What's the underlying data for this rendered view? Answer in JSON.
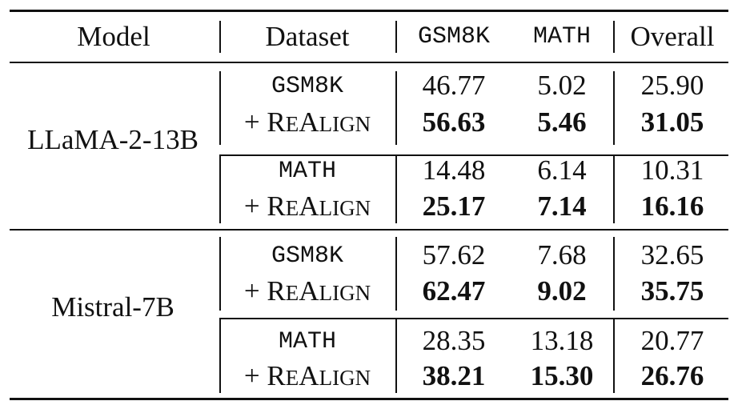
{
  "header": {
    "model": "Model",
    "dataset": "Dataset",
    "gsm8k": "GSM8K",
    "math": "MATH",
    "overall": "Overall"
  },
  "realign_prefix": "+ ",
  "realign_label": "ReAlign",
  "groups": [
    {
      "model": "LLaMA-2-13B",
      "blocks": [
        {
          "dataset": "GSM8K",
          "base": {
            "gsm8k": "46.77",
            "math": "5.02",
            "overall": "25.90"
          },
          "realign": {
            "gsm8k": "56.63",
            "math": "5.46",
            "overall": "31.05"
          }
        },
        {
          "dataset": "MATH",
          "base": {
            "gsm8k": "14.48",
            "math": "6.14",
            "overall": "10.31"
          },
          "realign": {
            "gsm8k": "25.17",
            "math": "7.14",
            "overall": "16.16"
          }
        }
      ]
    },
    {
      "model": "Mistral-7B",
      "blocks": [
        {
          "dataset": "GSM8K",
          "base": {
            "gsm8k": "57.62",
            "math": "7.68",
            "overall": "32.65"
          },
          "realign": {
            "gsm8k": "62.47",
            "math": "9.02",
            "overall": "35.75"
          }
        },
        {
          "dataset": "MATH",
          "base": {
            "gsm8k": "28.35",
            "math": "13.18",
            "overall": "20.77"
          },
          "realign": {
            "gsm8k": "38.21",
            "math": "15.30",
            "overall": "26.76"
          }
        }
      ]
    }
  ]
}
